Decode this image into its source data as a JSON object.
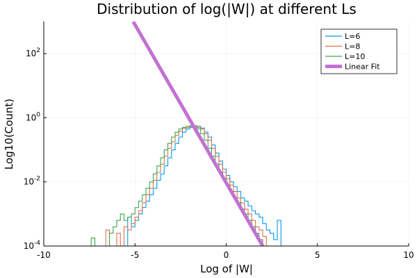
{
  "chart_data": {
    "type": "line",
    "title": "Distribution of log(|W|) at different Ls",
    "xlabel": "Log of |W|",
    "ylabel": "Log10(Count)",
    "xlim": [
      -10,
      10
    ],
    "ylim_log10": [
      -4,
      3
    ],
    "y_scale": "log10",
    "grid": true,
    "legend_position": "top-right",
    "x_ticks": [
      -10,
      -5,
      0,
      5,
      10
    ],
    "x_tick_labels": [
      "-10",
      "-5",
      "0",
      "5",
      "10"
    ],
    "y_ticks": [
      {
        "exp": -4,
        "base": "10",
        "power": "-4"
      },
      {
        "exp": -2,
        "base": "10",
        "power": "-2"
      },
      {
        "exp": 0,
        "base": "10",
        "power": "0"
      },
      {
        "exp": 2,
        "base": "10",
        "power": "2"
      }
    ],
    "series": [
      {
        "name": "L=6",
        "color": "#009af9",
        "step": true,
        "points": [
          [
            -5.4,
            -4
          ],
          [
            -5.4,
            -3.1
          ],
          [
            -5.2,
            -3.4
          ],
          [
            -5.0,
            -3.2
          ],
          [
            -4.8,
            -3.0
          ],
          [
            -4.6,
            -2.8
          ],
          [
            -4.4,
            -2.6
          ],
          [
            -4.2,
            -2.4
          ],
          [
            -4.0,
            -2.2
          ],
          [
            -3.8,
            -1.95
          ],
          [
            -3.6,
            -1.75
          ],
          [
            -3.4,
            -1.5
          ],
          [
            -3.2,
            -1.25
          ],
          [
            -3.0,
            -1.0
          ],
          [
            -2.8,
            -0.8
          ],
          [
            -2.6,
            -0.6
          ],
          [
            -2.4,
            -0.45
          ],
          [
            -2.2,
            -0.35
          ],
          [
            -2.0,
            -0.3
          ],
          [
            -1.8,
            -0.25
          ],
          [
            -1.6,
            -0.3
          ],
          [
            -1.4,
            -0.32
          ],
          [
            -1.2,
            -0.45
          ],
          [
            -1.0,
            -0.6
          ],
          [
            -0.8,
            -0.85
          ],
          [
            -0.6,
            -1.1
          ],
          [
            -0.4,
            -1.35
          ],
          [
            -0.2,
            -1.6
          ],
          [
            0.0,
            -1.8
          ],
          [
            0.2,
            -2.0
          ],
          [
            0.4,
            -2.15
          ],
          [
            0.6,
            -2.3
          ],
          [
            0.8,
            -2.5
          ],
          [
            1.0,
            -2.6
          ],
          [
            1.2,
            -2.75
          ],
          [
            1.4,
            -2.9
          ],
          [
            1.6,
            -3.0
          ],
          [
            1.8,
            -3.1
          ],
          [
            2.0,
            -3.3
          ],
          [
            2.2,
            -3.5
          ],
          [
            2.4,
            -3.6
          ],
          [
            2.6,
            -3.8
          ],
          [
            2.8,
            -3.2
          ],
          [
            3.0,
            -4
          ]
        ]
      },
      {
        "name": "L=8",
        "color": "#e26f46",
        "step": true,
        "points": [
          [
            -6.6,
            -4
          ],
          [
            -6.6,
            -3.5
          ],
          [
            -6.4,
            -4
          ],
          [
            -6.0,
            -3.6
          ],
          [
            -5.8,
            -4
          ],
          [
            -5.6,
            -3.4
          ],
          [
            -5.4,
            -3.5
          ],
          [
            -5.2,
            -3.3
          ],
          [
            -5.0,
            -3.1
          ],
          [
            -4.8,
            -2.9
          ],
          [
            -4.6,
            -2.65
          ],
          [
            -4.4,
            -2.4
          ],
          [
            -4.2,
            -2.2
          ],
          [
            -4.0,
            -1.95
          ],
          [
            -3.8,
            -1.7
          ],
          [
            -3.6,
            -1.45
          ],
          [
            -3.4,
            -1.2
          ],
          [
            -3.2,
            -0.95
          ],
          [
            -3.0,
            -0.75
          ],
          [
            -2.8,
            -0.55
          ],
          [
            -2.6,
            -0.42
          ],
          [
            -2.4,
            -0.33
          ],
          [
            -2.2,
            -0.3
          ],
          [
            -2.0,
            -0.27
          ],
          [
            -1.8,
            -0.25
          ],
          [
            -1.6,
            -0.26
          ],
          [
            -1.4,
            -0.35
          ],
          [
            -1.2,
            -0.5
          ],
          [
            -1.0,
            -0.7
          ],
          [
            -0.8,
            -0.95
          ],
          [
            -0.6,
            -1.2
          ],
          [
            -0.4,
            -1.45
          ],
          [
            -0.2,
            -1.7
          ],
          [
            0.0,
            -1.9
          ],
          [
            0.2,
            -2.1
          ],
          [
            0.4,
            -2.3
          ],
          [
            0.6,
            -2.5
          ],
          [
            0.8,
            -2.65
          ],
          [
            1.0,
            -2.85
          ],
          [
            1.2,
            -3.0
          ],
          [
            1.4,
            -3.2
          ],
          [
            1.6,
            -3.4
          ],
          [
            1.8,
            -3.5
          ],
          [
            2.0,
            -3.7
          ],
          [
            2.2,
            -4
          ]
        ]
      },
      {
        "name": "L=10",
        "color": "#3da44d",
        "step": true,
        "points": [
          [
            -7.4,
            -4
          ],
          [
            -7.4,
            -3.75
          ],
          [
            -7.2,
            -4
          ],
          [
            -6.4,
            -3.6
          ],
          [
            -6.2,
            -3.4
          ],
          [
            -6.0,
            -3.2
          ],
          [
            -5.8,
            -3.0
          ],
          [
            -5.6,
            -3.2
          ],
          [
            -5.4,
            -3.1
          ],
          [
            -5.2,
            -3.0
          ],
          [
            -5.0,
            -2.8
          ],
          [
            -4.8,
            -2.6
          ],
          [
            -4.6,
            -2.4
          ],
          [
            -4.4,
            -2.2
          ],
          [
            -4.2,
            -2.0
          ],
          [
            -4.0,
            -1.75
          ],
          [
            -3.8,
            -1.5
          ],
          [
            -3.6,
            -1.25
          ],
          [
            -3.4,
            -1.0
          ],
          [
            -3.2,
            -0.8
          ],
          [
            -3.0,
            -0.6
          ],
          [
            -2.8,
            -0.45
          ],
          [
            -2.6,
            -0.35
          ],
          [
            -2.4,
            -0.3
          ],
          [
            -2.2,
            -0.27
          ],
          [
            -2.0,
            -0.25
          ],
          [
            -1.8,
            -0.27
          ],
          [
            -1.6,
            -0.35
          ],
          [
            -1.4,
            -0.5
          ],
          [
            -1.2,
            -0.7
          ],
          [
            -1.0,
            -0.95
          ],
          [
            -0.8,
            -1.2
          ],
          [
            -0.6,
            -1.45
          ],
          [
            -0.4,
            -1.7
          ],
          [
            -0.2,
            -1.9
          ],
          [
            0.0,
            -2.1
          ],
          [
            0.2,
            -2.3
          ],
          [
            0.4,
            -2.5
          ],
          [
            0.6,
            -2.65
          ],
          [
            0.8,
            -2.85
          ],
          [
            1.0,
            -3.0
          ],
          [
            1.2,
            -3.2
          ],
          [
            1.4,
            -3.4
          ],
          [
            1.6,
            -3.6
          ],
          [
            1.8,
            -3.8
          ],
          [
            2.0,
            -4
          ]
        ]
      },
      {
        "name": "Linear Fit",
        "color": "#c271d2",
        "step": false,
        "thick": true,
        "points": [
          [
            -5.1,
            3.0
          ],
          [
            2.0,
            -4.0
          ]
        ]
      }
    ]
  }
}
